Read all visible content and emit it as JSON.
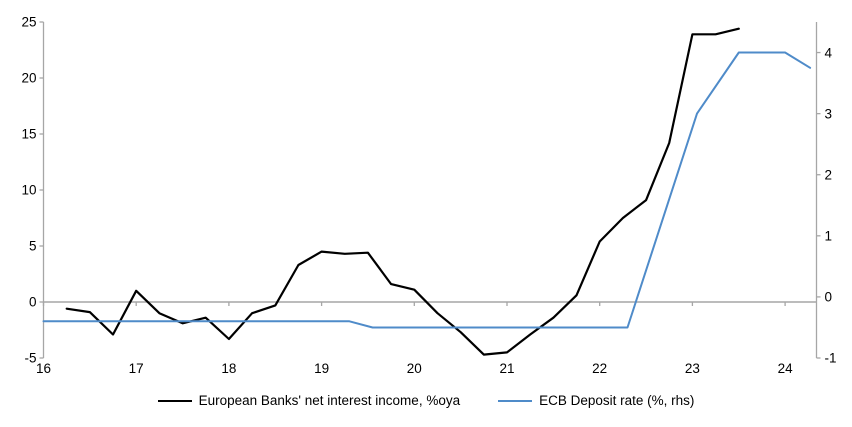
{
  "chart_data": {
    "type": "line",
    "title": "",
    "x_axis": {
      "min": 16,
      "max": 24.34,
      "tick_values": [
        16,
        17,
        18,
        19,
        20,
        21,
        22,
        23,
        24
      ],
      "tick_labels": [
        "16",
        "17",
        "18",
        "19",
        "20",
        "21",
        "22",
        "23",
        "24"
      ]
    },
    "left_axis": {
      "min": -5,
      "max": 25,
      "ticks": [
        25,
        20,
        15,
        10,
        5,
        0,
        -5
      ]
    },
    "right_axis": {
      "min": -1,
      "max": 4.5,
      "ticks": [
        4,
        3,
        2,
        1,
        0,
        -1
      ]
    },
    "grid": "zero-line-only",
    "legend_position": "bottom-center",
    "axis_color": "#a6a6a6",
    "text_color": "#000000",
    "series": [
      {
        "name": "European Banks' net interest income, %oya",
        "axis": "left",
        "color": "#000000",
        "stroke_width": 2.2,
        "x": [
          16.25,
          16.5,
          16.75,
          17.0,
          17.25,
          17.5,
          17.75,
          18.0,
          18.25,
          18.5,
          18.75,
          19.0,
          19.25,
          19.5,
          19.75,
          20.0,
          20.25,
          20.5,
          20.75,
          21.0,
          21.25,
          21.5,
          21.75,
          22.0,
          22.25,
          22.5,
          22.75,
          23.0,
          23.25,
          23.5
        ],
        "values": [
          -0.6,
          -0.9,
          -2.9,
          1.0,
          -1.0,
          -1.9,
          -1.4,
          -3.3,
          -1.0,
          -0.3,
          3.3,
          4.5,
          4.3,
          4.4,
          1.6,
          1.1,
          -1.0,
          -2.7,
          -4.7,
          -4.5,
          -2.9,
          -1.4,
          0.6,
          5.4,
          7.5,
          9.1,
          14.2,
          23.9,
          23.9,
          24.4
        ]
      },
      {
        "name": "ECB Deposit rate (%, rhs)",
        "axis": "right",
        "color": "#4f8bc9",
        "stroke_width": 2,
        "x": [
          16.0,
          19.3,
          19.55,
          22.3,
          23.05,
          23.5,
          24.0,
          24.27
        ],
        "values": [
          -0.4,
          -0.4,
          -0.5,
          -0.5,
          3.0,
          4.0,
          4.0,
          3.75
        ]
      }
    ]
  }
}
